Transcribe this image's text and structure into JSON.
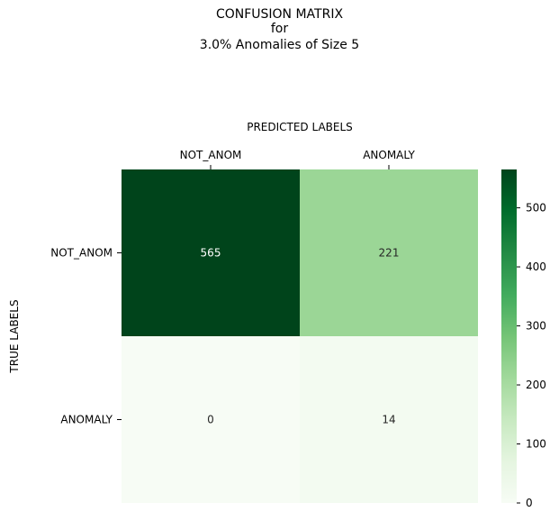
{
  "chart_data": {
    "type": "heatmap",
    "title_lines": [
      "CONFUSION MATRIX",
      "for",
      "3.0% Anomalies of Size 5"
    ],
    "xlabel": "PREDICTED LABELS",
    "ylabel": "TRUE LABELS",
    "x_categories": [
      "NOT_ANOM",
      "ANOMALY"
    ],
    "y_categories": [
      "NOT_ANOM",
      "ANOMALY"
    ],
    "values": [
      [
        565,
        221
      ],
      [
        0,
        14
      ]
    ],
    "colorbar": {
      "min": 0,
      "max": 565,
      "ticks": [
        0,
        100,
        200,
        300,
        400,
        500
      ]
    },
    "colormap": "Greens",
    "x_axis_position": "top"
  }
}
